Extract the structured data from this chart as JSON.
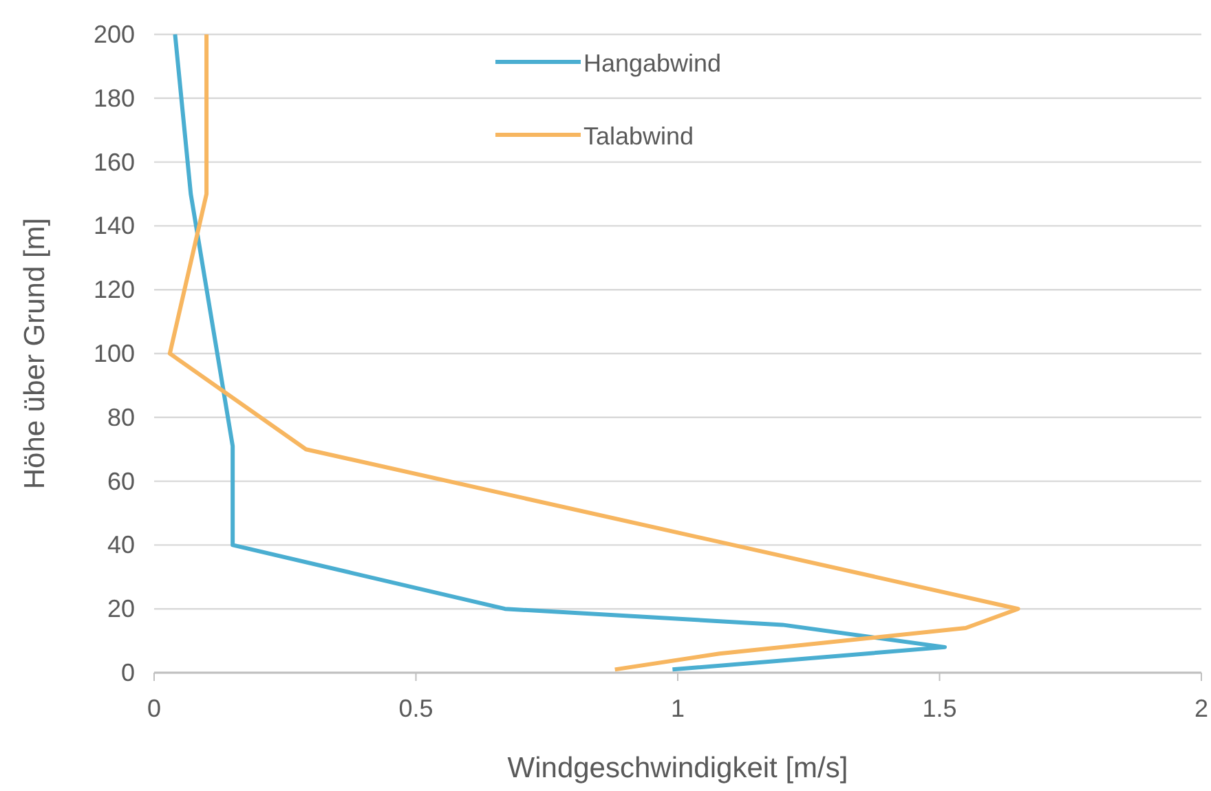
{
  "chart_data": {
    "type": "line",
    "xlabel": "Windgeschwindigkeit [m/s]",
    "ylabel": "Höhe über Grund [m]",
    "xlim": [
      0,
      2
    ],
    "xticks": [
      0,
      0.5,
      1,
      1.5,
      2
    ],
    "ylim": [
      0,
      200
    ],
    "yticks": [
      0,
      20,
      40,
      60,
      80,
      100,
      120,
      140,
      160,
      180,
      200
    ],
    "grid": "y",
    "legend": "top",
    "series": [
      {
        "name": "Hangabwind",
        "color": "#4aaed1",
        "x": [
          0.04,
          0.07,
          0.15,
          0.15,
          0.67,
          1.2,
          1.51,
          0.99
        ],
        "values": [
          200,
          150,
          71,
          40,
          20,
          15,
          8,
          1
        ]
      },
      {
        "name": "Talabwind",
        "color": "#f7b660",
        "x": [
          0.1,
          0.1,
          0.03,
          0.29,
          1.65,
          1.55,
          1.08,
          0.88
        ],
        "values": [
          200,
          150,
          100,
          70,
          20,
          14,
          6,
          1
        ]
      }
    ]
  }
}
